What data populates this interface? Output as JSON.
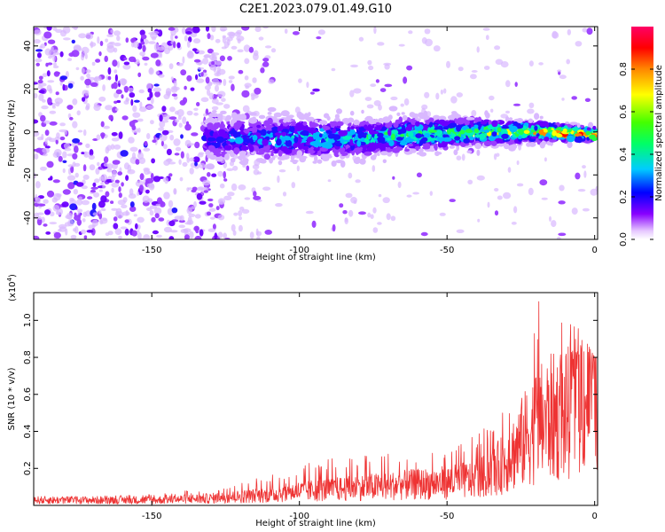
{
  "title": "C2E1.2023.079.01.49.G10",
  "chart_data": [
    {
      "type": "heatmap",
      "xlabel": "Height of straight line (km)",
      "ylabel": "Frequency (Hz)",
      "xlim": [
        -190,
        1
      ],
      "ylim": [
        -50,
        49
      ],
      "xticks": [
        -150,
        -100,
        -50,
        0
      ],
      "yticks": [
        -40,
        -20,
        0,
        20,
        40
      ],
      "colorbar": {
        "label": "Normalized spectral amplitude",
        "range": [
          0,
          1
        ],
        "ticks": [
          0.0,
          0.2,
          0.4,
          0.6,
          0.8
        ]
      },
      "ridge": {
        "description_x": [
          -130,
          -100,
          -80,
          -60,
          -40,
          -20,
          0
        ],
        "center_hz": [
          -3,
          -3,
          -3,
          -1,
          0,
          0,
          -1
        ],
        "peak_amplitude": [
          0.25,
          0.35,
          0.4,
          0.45,
          0.5,
          0.6,
          0.85
        ]
      },
      "grid": false
    },
    {
      "type": "line",
      "xlabel": "Height of straight line (km)",
      "ylabel": "SNR (10 * v/v)",
      "yscale_label": "(x10",
      "yscale_exp": "4",
      "yscale_close": ")",
      "xlim": [
        -190,
        1
      ],
      "ylim": [
        0,
        1.15
      ],
      "xticks": [
        -150,
        -100,
        -50,
        0
      ],
      "yticks": [
        0.2,
        0.4,
        0.6,
        0.8,
        1.0
      ],
      "color": "#ee3333",
      "series": [
        {
          "x": [
            -190,
            -170,
            -150,
            -140,
            -130,
            -120,
            -110,
            -100,
            -90,
            -80,
            -70,
            -60,
            -50,
            -40,
            -35,
            -30,
            -25,
            -20,
            -15,
            -10,
            -5,
            0
          ],
          "values": [
            0.03,
            0.03,
            0.03,
            0.035,
            0.04,
            0.05,
            0.06,
            0.08,
            0.09,
            0.1,
            0.11,
            0.12,
            0.13,
            0.15,
            0.18,
            0.25,
            0.35,
            0.45,
            0.5,
            0.5,
            0.6,
            0.68
          ],
          "envelope_max": [
            0.05,
            0.05,
            0.06,
            0.08,
            0.08,
            0.14,
            0.16,
            0.22,
            0.25,
            0.28,
            0.28,
            0.3,
            0.3,
            0.38,
            0.45,
            0.6,
            0.75,
            1.15,
            1.05,
            1.0,
            0.95,
            0.8
          ]
        }
      ],
      "grid": false
    }
  ]
}
